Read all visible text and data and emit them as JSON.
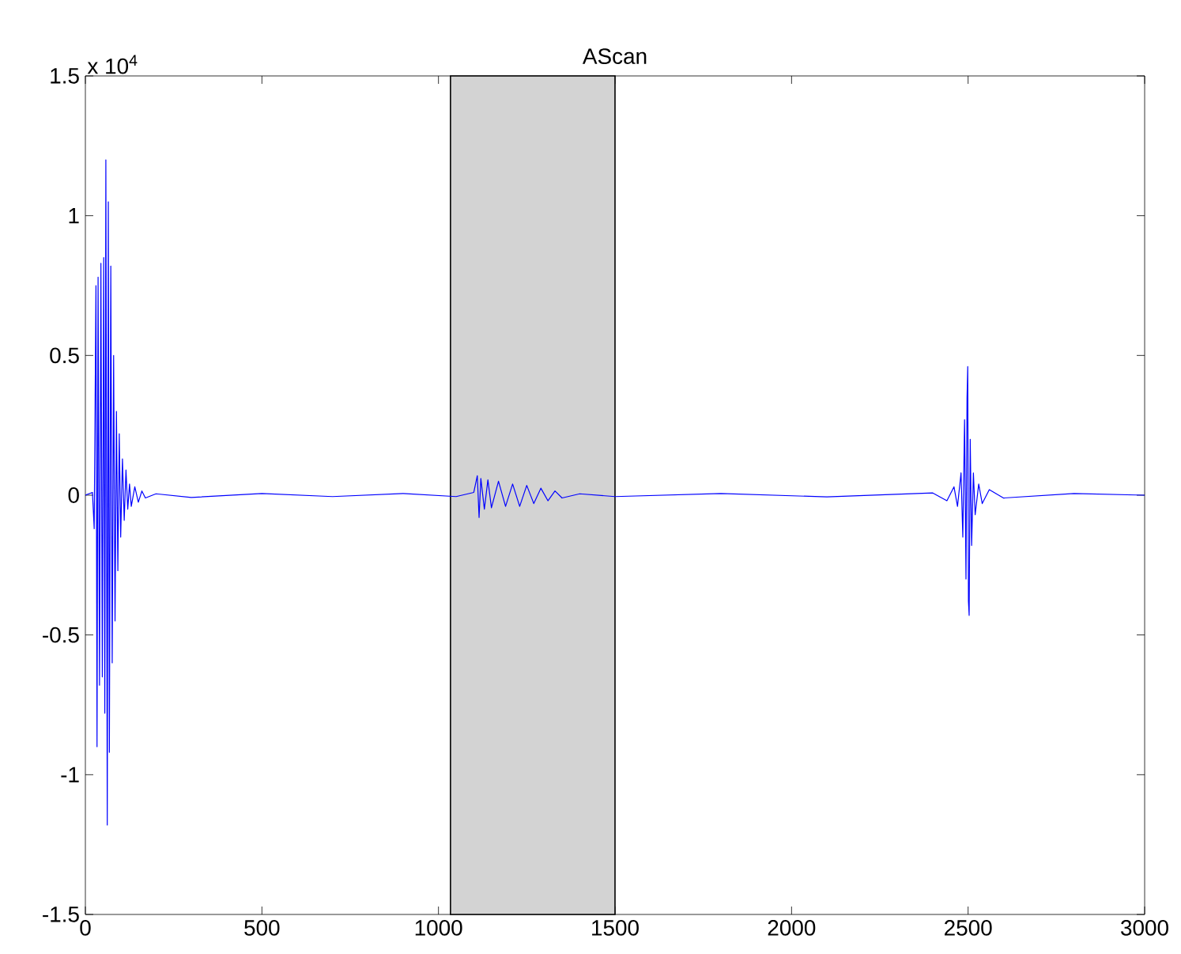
{
  "chart_data": {
    "type": "line",
    "title": "AScan",
    "annotations": [
      "x 10$^{4}$"
    ],
    "xlim": [
      0,
      3000
    ],
    "xticks": [
      0,
      500,
      1000,
      1500,
      2000,
      2500,
      3000
    ],
    "ylim": [
      -1.5,
      1.5
    ],
    "yticks": [
      -1.5,
      -1,
      -0.5,
      0,
      0.5,
      1,
      1.5
    ],
    "grid": false,
    "bands": [
      {
        "axis": "x",
        "from": 1034,
        "to": 1500,
        "color": "#d3d3d3"
      }
    ],
    "series": [
      {
        "color": "#0000ff",
        "x": [
          0,
          20,
          25,
          30,
          33,
          36,
          40,
          44,
          48,
          52,
          55,
          58,
          62,
          65,
          68,
          72,
          76,
          80,
          84,
          88,
          92,
          96,
          100,
          105,
          110,
          115,
          120,
          125,
          130,
          140,
          150,
          160,
          170,
          200,
          300,
          500,
          700,
          900,
          1050,
          1100,
          1110,
          1115,
          1120,
          1130,
          1140,
          1150,
          1170,
          1190,
          1210,
          1230,
          1250,
          1270,
          1290,
          1310,
          1330,
          1350,
          1400,
          1500,
          1800,
          2100,
          2400,
          2440,
          2460,
          2470,
          2480,
          2485,
          2490,
          2494,
          2497,
          2499,
          2501,
          2503,
          2506,
          2510,
          2515,
          2520,
          2530,
          2540,
          2560,
          2600,
          2800,
          3000
        ],
        "values": [
          0,
          0.01,
          -0.12,
          0.75,
          -0.9,
          0.78,
          -0.68,
          0.83,
          -0.65,
          0.85,
          -0.78,
          1.2,
          -1.18,
          1.05,
          -0.92,
          0.82,
          -0.6,
          0.5,
          -0.45,
          0.3,
          -0.27,
          0.22,
          -0.15,
          0.13,
          -0.09,
          0.09,
          -0.05,
          0.04,
          -0.04,
          0.03,
          -0.025,
          0.015,
          -0.01,
          0.005,
          -0.008,
          0.006,
          -0.005,
          0.006,
          -0.005,
          0.01,
          0.07,
          -0.08,
          0.06,
          -0.05,
          0.055,
          -0.045,
          0.05,
          -0.04,
          0.04,
          -0.04,
          0.035,
          -0.03,
          0.025,
          -0.02,
          0.015,
          -0.01,
          0.005,
          -0.005,
          0.006,
          -0.006,
          0.008,
          -0.02,
          0.03,
          -0.04,
          0.08,
          -0.15,
          0.27,
          -0.3,
          0.35,
          0.46,
          -0.38,
          -0.43,
          0.2,
          -0.18,
          0.08,
          -0.07,
          0.04,
          -0.03,
          0.02,
          -0.01,
          0.006,
          0
        ]
      }
    ]
  }
}
